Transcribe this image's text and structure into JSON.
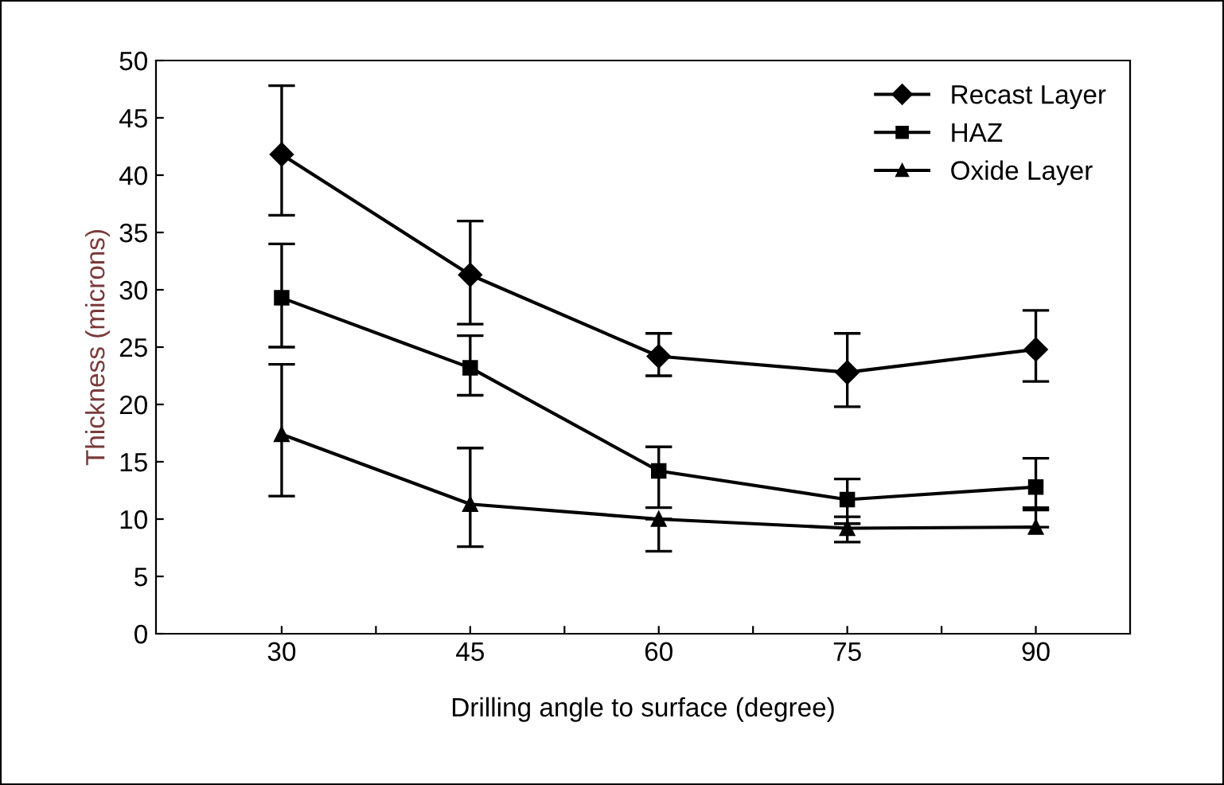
{
  "chart_data": {
    "type": "line",
    "xlabel": "Drilling angle to surface (degree)",
    "ylabel": "Thickness (microns)",
    "x": [
      30,
      45,
      60,
      75,
      90
    ],
    "series": [
      {
        "name": "Recast Layer",
        "color": "#000000",
        "marker": "diamond",
        "values": [
          41.8,
          31.3,
          24.2,
          22.8,
          24.8
        ],
        "errors": [
          [
            36.5,
            47.8
          ],
          [
            27,
            36
          ],
          [
            22.5,
            26.2
          ],
          [
            19.8,
            26.2
          ],
          [
            22,
            28.2
          ]
        ]
      },
      {
        "name": "HAZ",
        "color": "#000000",
        "marker": "square",
        "values": [
          29.3,
          23.2,
          14.2,
          11.7,
          12.8
        ],
        "errors": [
          [
            25,
            34
          ],
          [
            20.8,
            26
          ],
          [
            11,
            16.3
          ],
          [
            9.6,
            13.5
          ],
          [
            10.8,
            15.3
          ]
        ]
      },
      {
        "name": "Oxide Layer",
        "color": "#000000",
        "marker": "triangle",
        "values": [
          17.4,
          11.3,
          10,
          9.2,
          9.3
        ],
        "errors": [
          [
            12,
            23.5
          ],
          [
            7.6,
            16.2
          ],
          [
            7.2,
            10
          ],
          [
            8,
            10.2
          ],
          [
            9.3,
            11
          ]
        ]
      }
    ],
    "xlim": [
      20,
      97.5
    ],
    "ylim": [
      0,
      50
    ],
    "xticks": [
      30,
      {
        "value": 37.5,
        "label": null
      },
      45,
      {
        "value": 52.5,
        "label": null
      },
      60,
      {
        "value": 67.5,
        "label": null
      },
      75,
      {
        "value": 82.5,
        "label": null
      },
      90
    ],
    "yticks": [
      0,
      5,
      10,
      15,
      20,
      25,
      30,
      35,
      40,
      45,
      50
    ],
    "grid": false,
    "legend": "top right",
    "line_style": "solid"
  }
}
